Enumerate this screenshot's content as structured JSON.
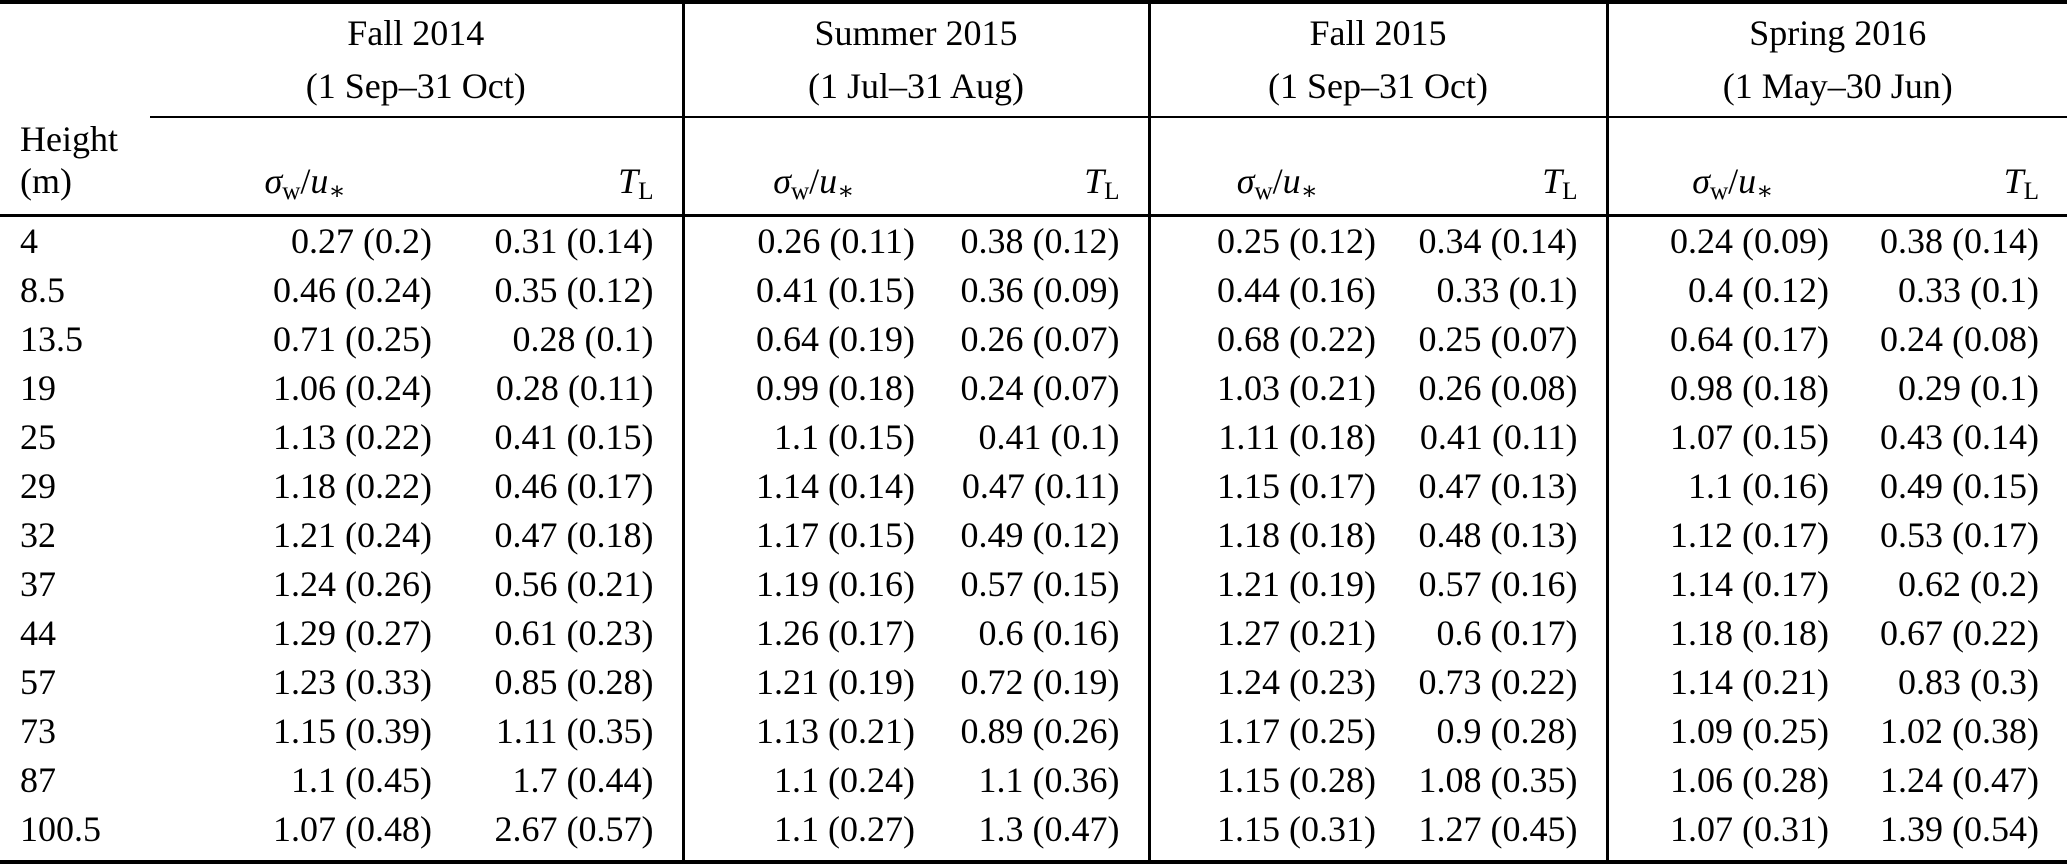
{
  "table": {
    "row_header_label": "Height (m)",
    "groups": [
      {
        "season": "Fall 2014",
        "period": "(1 Sep–31 Oct)"
      },
      {
        "season": "Summer 2015",
        "period": "(1 Jul–31 Aug)"
      },
      {
        "season": "Fall 2015",
        "period": "(1 Sep–31 Oct)"
      },
      {
        "season": "Spring 2016",
        "period": "(1 May–30 Jun)"
      }
    ],
    "column_math": {
      "sigma": "σ",
      "sigma_sub": "w",
      "slash": "/",
      "u": "u",
      "u_sub": "∗",
      "t": "T",
      "t_sub": "L"
    },
    "rows": [
      {
        "height": "4",
        "values": [
          "0.27 (0.2)",
          "0.31 (0.14)",
          "0.26 (0.11)",
          "0.38 (0.12)",
          "0.25 (0.12)",
          "0.34 (0.14)",
          "0.24 (0.09)",
          "0.38 (0.14)"
        ]
      },
      {
        "height": "8.5",
        "values": [
          "0.46 (0.24)",
          "0.35 (0.12)",
          "0.41 (0.15)",
          "0.36 (0.09)",
          "0.44 (0.16)",
          "0.33 (0.1)",
          "0.4 (0.12)",
          "0.33 (0.1)"
        ]
      },
      {
        "height": "13.5",
        "values": [
          "0.71 (0.25)",
          "0.28 (0.1)",
          "0.64 (0.19)",
          "0.26 (0.07)",
          "0.68 (0.22)",
          "0.25 (0.07)",
          "0.64 (0.17)",
          "0.24 (0.08)"
        ]
      },
      {
        "height": "19",
        "values": [
          "1.06 (0.24)",
          "0.28 (0.11)",
          "0.99 (0.18)",
          "0.24 (0.07)",
          "1.03 (0.21)",
          "0.26 (0.08)",
          "0.98 (0.18)",
          "0.29 (0.1)"
        ]
      },
      {
        "height": "25",
        "values": [
          "1.13 (0.22)",
          "0.41 (0.15)",
          "1.1 (0.15)",
          "0.41 (0.1)",
          "1.11 (0.18)",
          "0.41 (0.11)",
          "1.07 (0.15)",
          "0.43 (0.14)"
        ]
      },
      {
        "height": "29",
        "values": [
          "1.18 (0.22)",
          "0.46 (0.17)",
          "1.14 (0.14)",
          "0.47 (0.11)",
          "1.15 (0.17)",
          "0.47 (0.13)",
          "1.1 (0.16)",
          "0.49 (0.15)"
        ]
      },
      {
        "height": "32",
        "values": [
          "1.21 (0.24)",
          "0.47 (0.18)",
          "1.17 (0.15)",
          "0.49 (0.12)",
          "1.18 (0.18)",
          "0.48 (0.13)",
          "1.12 (0.17)",
          "0.53 (0.17)"
        ]
      },
      {
        "height": "37",
        "values": [
          "1.24 (0.26)",
          "0.56 (0.21)",
          "1.19 (0.16)",
          "0.57 (0.15)",
          "1.21 (0.19)",
          "0.57 (0.16)",
          "1.14 (0.17)",
          "0.62 (0.2)"
        ]
      },
      {
        "height": "44",
        "values": [
          "1.29 (0.27)",
          "0.61 (0.23)",
          "1.26 (0.17)",
          "0.6 (0.16)",
          "1.27 (0.21)",
          "0.6 (0.17)",
          "1.18 (0.18)",
          "0.67 (0.22)"
        ]
      },
      {
        "height": "57",
        "values": [
          "1.23 (0.33)",
          "0.85 (0.28)",
          "1.21 (0.19)",
          "0.72 (0.19)",
          "1.24 (0.23)",
          "0.73 (0.22)",
          "1.14 (0.21)",
          "0.83 (0.3)"
        ]
      },
      {
        "height": "73",
        "values": [
          "1.15 (0.39)",
          "1.11 (0.35)",
          "1.13 (0.21)",
          "0.89 (0.26)",
          "1.17 (0.25)",
          "0.9 (0.28)",
          "1.09 (0.25)",
          "1.02 (0.38)"
        ]
      },
      {
        "height": "87",
        "values": [
          "1.1 (0.45)",
          "1.7 (0.44)",
          "1.1 (0.24)",
          "1.1 (0.36)",
          "1.15 (0.28)",
          "1.08 (0.35)",
          "1.06 (0.28)",
          "1.24 (0.47)"
        ]
      },
      {
        "height": "100.5",
        "values": [
          "1.07 (0.48)",
          "2.67 (0.57)",
          "1.1 (0.27)",
          "1.3 (0.47)",
          "1.15 (0.31)",
          "1.27 (0.45)",
          "1.07 (0.31)",
          "1.39 (0.54)"
        ]
      }
    ]
  },
  "colors": {
    "text": "#000000",
    "rule": "#000000",
    "background": "#ffffff"
  }
}
